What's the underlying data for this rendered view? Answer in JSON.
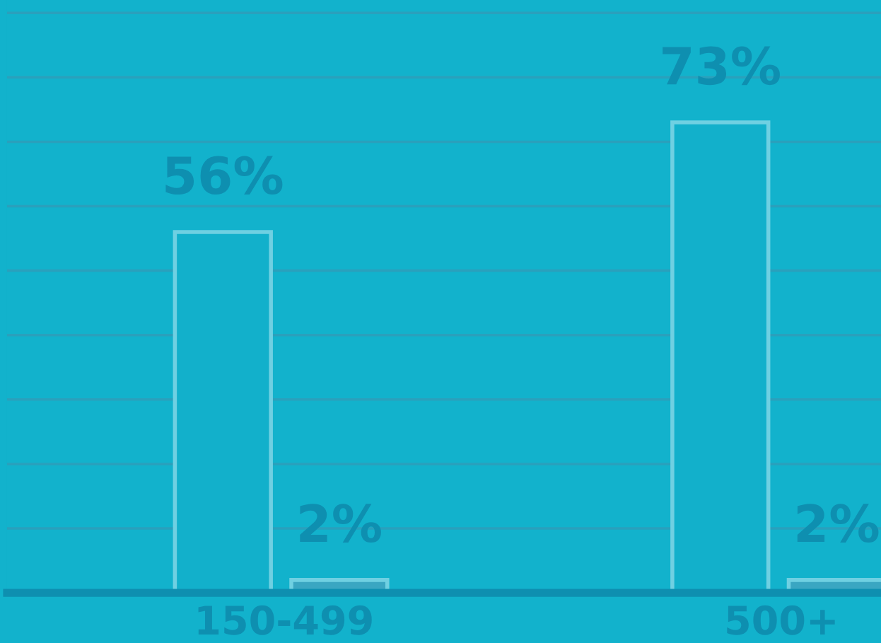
{
  "chart_data": {
    "type": "bar",
    "categories": [
      "150-499",
      "500+"
    ],
    "series": [
      {
        "color": "#12b0cb",
        "values": [
          56,
          73
        ],
        "value_labels": [
          "56%",
          "73%"
        ]
      },
      {
        "color": "#3aa6c2",
        "values": [
          2,
          2
        ],
        "value_labels": [
          "2%",
          "2%"
        ]
      }
    ],
    "ylim": [
      0,
      92
    ],
    "yticks": [
      {
        "value": 0,
        "label": null
      },
      {
        "value": 10,
        "label": null
      },
      {
        "value": 20,
        "label": null
      },
      {
        "value": 30,
        "label": null
      },
      {
        "value": 40,
        "label": null
      },
      {
        "value": 50,
        "label": null
      },
      {
        "value": 60,
        "label": null
      },
      {
        "value": 70,
        "label": null
      },
      {
        "value": 80,
        "label": null
      },
      {
        "value": 90,
        "label": null
      }
    ],
    "grid": "y",
    "legend": false,
    "tick_labels": "x"
  }
}
